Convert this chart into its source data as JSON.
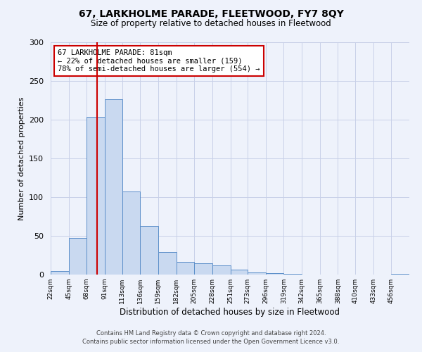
{
  "title": "67, LARKHOLME PARADE, FLEETWOOD, FY7 8QY",
  "subtitle": "Size of property relative to detached houses in Fleetwood",
  "xlabel": "Distribution of detached houses by size in Fleetwood",
  "ylabel": "Number of detached properties",
  "bar_edges": [
    22,
    45,
    68,
    91,
    113,
    136,
    159,
    182,
    205,
    228,
    251,
    273,
    296,
    319,
    342,
    365,
    388,
    410,
    433,
    456,
    479
  ],
  "bar_heights": [
    5,
    47,
    204,
    226,
    107,
    63,
    29,
    16,
    15,
    12,
    6,
    3,
    2,
    1,
    0,
    0,
    0,
    0,
    0,
    1
  ],
  "bar_color": "#c9d9f0",
  "bar_edgecolor": "#5b8ec9",
  "vline_x": 81,
  "vline_color": "#cc0000",
  "annotation_line1": "67 LARKHOLME PARADE: 81sqm",
  "annotation_line2": "← 22% of detached houses are smaller (159)",
  "annotation_line3": "78% of semi-detached houses are larger (554) →",
  "annotation_box_facecolor": "white",
  "annotation_box_edgecolor": "#cc0000",
  "ylim": [
    0,
    300
  ],
  "yticks": [
    0,
    50,
    100,
    150,
    200,
    250,
    300
  ],
  "xlim": [
    22,
    479
  ],
  "bg_color": "#eef2fb",
  "grid_color": "#c8d0e8",
  "footer_line1": "Contains HM Land Registry data © Crown copyright and database right 2024.",
  "footer_line2": "Contains public sector information licensed under the Open Government Licence v3.0."
}
